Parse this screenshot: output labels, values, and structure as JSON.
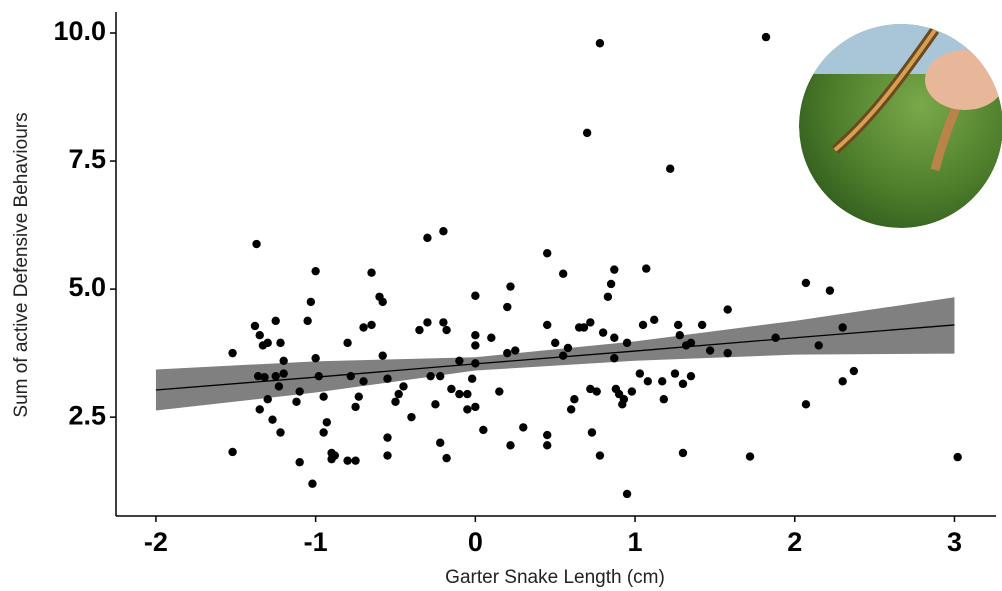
{
  "chart_data": {
    "type": "scatter",
    "x_label": "Garter Snake Length (cm)",
    "y_label": "Sum of active Defensive Behaviours",
    "xlim": [
      -2.25,
      3.26
    ],
    "ylim": [
      0.57,
      10.41
    ],
    "xticks": [
      -2,
      -1,
      0,
      1,
      2,
      3
    ],
    "yticks": [
      {
        "value": 2.5,
        "label": "2.5"
      },
      {
        "value": 5,
        "label": "5.0"
      },
      {
        "value": 7.5,
        "label": "7.5"
      },
      {
        "value": 10,
        "label": "10.0"
      }
    ],
    "color": "#000000",
    "x": [
      -1.52,
      -1.52,
      -1.37,
      -1.38,
      -1.35,
      -1.33,
      -1.3,
      -1.36,
      -1.32,
      -1.35,
      -1.3,
      -1.25,
      -1.22,
      -1.2,
      -1.25,
      -1.2,
      -1.23,
      -1.27,
      -1.22,
      -1.12,
      -1.1,
      -1.1,
      -1.05,
      -1.03,
      -1.0,
      -1.0,
      -0.98,
      -0.95,
      -0.93,
      -0.95,
      -0.9,
      -0.88,
      -0.9,
      -1.02,
      -0.8,
      -0.75,
      -0.8,
      -0.78,
      -0.75,
      -0.73,
      -0.7,
      -0.7,
      -0.65,
      -0.65,
      -0.6,
      -0.58,
      -0.58,
      -0.55,
      -0.55,
      -0.55,
      -0.5,
      -0.48,
      -0.45,
      -0.4,
      -0.35,
      -0.3,
      -0.3,
      -0.28,
      -0.25,
      -0.22,
      -0.22,
      -0.18,
      -0.15,
      -0.1,
      -0.1,
      -0.05,
      -0.2,
      -0.2,
      -0.18,
      0.0,
      0.0,
      0.0,
      0.0,
      -0.02,
      0.0,
      -0.05,
      0.05,
      0.1,
      0.15,
      0.2,
      0.2,
      0.25,
      0.22,
      0.22,
      0.3,
      0.45,
      0.45,
      0.45,
      0.45,
      0.5,
      0.55,
      0.55,
      0.58,
      0.6,
      0.62,
      0.65,
      0.68,
      0.7,
      0.72,
      0.72,
      0.73,
      0.76,
      0.78,
      0.78,
      0.8,
      0.83,
      0.85,
      0.87,
      0.87,
      0.87,
      0.88,
      0.9,
      0.92,
      0.93,
      0.95,
      0.95,
      0.98,
      1.03,
      1.05,
      1.07,
      1.08,
      1.12,
      1.17,
      1.18,
      1.22,
      1.25,
      1.27,
      1.28,
      1.3,
      1.3,
      1.32,
      1.35,
      1.35,
      1.42,
      1.47,
      1.58,
      1.58,
      1.72,
      1.82,
      1.88,
      2.07,
      2.07,
      2.15,
      2.22,
      2.3,
      2.3,
      2.37,
      3.02
    ],
    "y": [
      3.75,
      1.82,
      5.88,
      4.28,
      4.1,
      3.9,
      3.95,
      3.3,
      3.28,
      2.65,
      2.85,
      4.38,
      3.95,
      3.6,
      3.3,
      3.35,
      3.1,
      2.45,
      2.2,
      2.8,
      3.0,
      1.62,
      4.38,
      4.75,
      5.35,
      3.65,
      3.3,
      2.9,
      2.4,
      2.2,
      1.8,
      1.75,
      1.68,
      1.2,
      1.65,
      1.65,
      3.95,
      3.3,
      2.7,
      2.9,
      3.2,
      4.25,
      4.3,
      5.32,
      4.85,
      4.75,
      3.7,
      3.25,
      2.1,
      1.75,
      2.8,
      2.95,
      3.1,
      2.5,
      4.2,
      6.0,
      4.35,
      3.3,
      2.75,
      3.3,
      2.0,
      1.7,
      3.05,
      2.95,
      3.6,
      2.65,
      6.13,
      4.35,
      4.2,
      4.87,
      4.1,
      3.9,
      3.55,
      3.25,
      2.7,
      2.95,
      2.25,
      4.05,
      3.0,
      4.65,
      3.75,
      3.8,
      5.05,
      1.95,
      2.3,
      5.7,
      4.3,
      2.15,
      1.95,
      3.95,
      5.3,
      3.7,
      3.85,
      2.65,
      2.85,
      4.25,
      4.25,
      8.05,
      4.35,
      3.05,
      2.2,
      3.0,
      9.8,
      1.75,
      4.15,
      4.85,
      5.1,
      5.38,
      4.05,
      3.65,
      3.05,
      2.95,
      2.75,
      2.85,
      1.0,
      3.95,
      3.0,
      3.35,
      4.3,
      5.4,
      3.2,
      4.4,
      3.2,
      2.85,
      7.35,
      3.35,
      4.3,
      4.1,
      3.15,
      1.8,
      3.9,
      3.95,
      3.3,
      4.3,
      3.8,
      3.75,
      4.6,
      1.73,
      9.92,
      4.05,
      5.12,
      2.75,
      3.9,
      4.97,
      4.25,
      3.2,
      3.4,
      1.72
    ],
    "fit": {
      "x": [
        -2,
        -1,
        0,
        1,
        2,
        3
      ],
      "y": [
        3.03,
        3.28,
        3.54,
        3.79,
        4.05,
        4.3
      ],
      "lower": [
        2.63,
        2.98,
        3.41,
        3.6,
        3.72,
        3.74
      ],
      "upper": [
        3.43,
        3.59,
        3.67,
        3.98,
        4.38,
        4.84
      ],
      "line_color": "#000000",
      "band_color": "#808080"
    }
  }
}
